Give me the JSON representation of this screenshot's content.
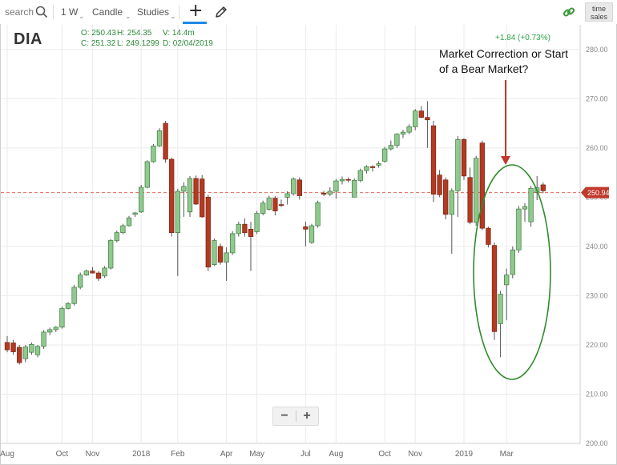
{
  "toolbar": {
    "search_label": "search",
    "interval": "1 W",
    "chart_type": "Candle",
    "studies_label": "Studies",
    "caret": "⌄",
    "time_sales_line1": "time",
    "time_sales_line2": "sales",
    "icons": [
      "search-icon",
      "chevron-down-icon",
      "crosshair-icon",
      "pencil-icon",
      "link-icon"
    ]
  },
  "header": {
    "symbol": "DIA",
    "open": "O: 250.43",
    "high": "H: 254.35",
    "volume": "V: 14.4m",
    "close": "C: 251.32",
    "low": "L: 249.1299",
    "date": "D: 02/04/2019",
    "change": "+1.84 (+0.73%)"
  },
  "annotation": {
    "text_line1": "Market Correction or Start",
    "text_line2": "of a Bear Market?"
  },
  "zoom": {
    "minus": "−",
    "plus": "+"
  },
  "colors": {
    "up_candle": "#8fc98f",
    "down_candle": "#b33a22",
    "wick": "#555555",
    "price_line": "#e06a5a",
    "price_tag": "#c0392b",
    "annotation_circle": "#2e8b2e",
    "annotation_arrow": "#c0392b",
    "grid": "#ebebeb",
    "ohlc_text": "#2e8b3a"
  },
  "chart_data": {
    "type": "candlestick",
    "title": "",
    "xlabel": "",
    "ylabel": "",
    "ylim": [
      200,
      285
    ],
    "y_ticks": [
      "200.00",
      "210.00",
      "220.00",
      "230.00",
      "240.00",
      "250.00",
      "260.00",
      "270.00",
      "280.00"
    ],
    "last_price": 250.94,
    "last_price_label": "250.94",
    "grid": true,
    "x_tick_labels": [
      "Aug",
      "Oct",
      "Nov",
      "2018",
      "Feb",
      "Apr",
      "May",
      "Jul",
      "Aug",
      "Oct",
      "Nov",
      "2019",
      "Mar"
    ],
    "x_tick_index": [
      0,
      9,
      14,
      22,
      28,
      36,
      41,
      49,
      54,
      62,
      67,
      75,
      82
    ],
    "candles": [
      {
        "o": 220.5,
        "h": 221.8,
        "l": 218.5,
        "c": 219.0
      },
      {
        "o": 220.4,
        "h": 221.0,
        "l": 218.0,
        "c": 218.6
      },
      {
        "o": 219.5,
        "h": 220.0,
        "l": 216.0,
        "c": 216.4
      },
      {
        "o": 217.2,
        "h": 220.0,
        "l": 216.5,
        "c": 219.6
      },
      {
        "o": 218.5,
        "h": 220.5,
        "l": 218.0,
        "c": 220.1
      },
      {
        "o": 218.0,
        "h": 220.0,
        "l": 217.5,
        "c": 219.7
      },
      {
        "o": 219.7,
        "h": 223.0,
        "l": 219.2,
        "c": 222.6
      },
      {
        "o": 222.6,
        "h": 223.5,
        "l": 222.0,
        "c": 223.1
      },
      {
        "o": 223.1,
        "h": 223.8,
        "l": 222.6,
        "c": 223.6
      },
      {
        "o": 223.6,
        "h": 227.8,
        "l": 223.3,
        "c": 227.4
      },
      {
        "o": 227.4,
        "h": 228.7,
        "l": 227.2,
        "c": 228.4
      },
      {
        "o": 228.4,
        "h": 232.2,
        "l": 228.0,
        "c": 231.7
      },
      {
        "o": 231.7,
        "h": 234.7,
        "l": 231.3,
        "c": 234.2
      },
      {
        "o": 234.2,
        "h": 235.3,
        "l": 234.0,
        "c": 235.0
      },
      {
        "o": 235.0,
        "h": 235.8,
        "l": 234.5,
        "c": 234.6
      },
      {
        "o": 234.6,
        "h": 235.0,
        "l": 233.0,
        "c": 233.5
      },
      {
        "o": 234.0,
        "h": 236.0,
        "l": 233.6,
        "c": 235.6
      },
      {
        "o": 235.6,
        "h": 241.5,
        "l": 235.3,
        "c": 241.2
      },
      {
        "o": 241.2,
        "h": 243.2,
        "l": 240.8,
        "c": 242.8
      },
      {
        "o": 242.8,
        "h": 244.6,
        "l": 242.5,
        "c": 244.2
      },
      {
        "o": 244.2,
        "h": 246.2,
        "l": 244.0,
        "c": 245.8
      },
      {
        "o": 246.5,
        "h": 247.0,
        "l": 246.0,
        "c": 246.8
      },
      {
        "o": 247.0,
        "h": 252.5,
        "l": 246.8,
        "c": 252.0
      },
      {
        "o": 252.0,
        "h": 257.5,
        "l": 251.8,
        "c": 257.2
      },
      {
        "o": 257.2,
        "h": 260.8,
        "l": 257.0,
        "c": 260.4
      },
      {
        "o": 260.4,
        "h": 264.0,
        "l": 260.2,
        "c": 263.5
      },
      {
        "o": 265.0,
        "h": 265.5,
        "l": 257.0,
        "c": 257.7
      },
      {
        "o": 257.7,
        "h": 258.0,
        "l": 242.0,
        "c": 242.8
      },
      {
        "o": 242.8,
        "h": 251.7,
        "l": 234.0,
        "c": 251.2
      },
      {
        "o": 251.2,
        "h": 253.0,
        "l": 246.0,
        "c": 252.2
      },
      {
        "o": 247.0,
        "h": 254.3,
        "l": 246.0,
        "c": 253.8
      },
      {
        "o": 253.8,
        "h": 254.4,
        "l": 248.4,
        "c": 248.6
      },
      {
        "o": 253.7,
        "h": 254.5,
        "l": 245.8,
        "c": 246.0
      },
      {
        "o": 250.0,
        "h": 250.5,
        "l": 235.0,
        "c": 235.8
      },
      {
        "o": 236.3,
        "h": 241.6,
        "l": 236.0,
        "c": 241.2
      },
      {
        "o": 240.0,
        "h": 240.6,
        "l": 236.3,
        "c": 236.8
      },
      {
        "o": 236.8,
        "h": 239.8,
        "l": 233.0,
        "c": 238.7
      },
      {
        "o": 238.7,
        "h": 243.1,
        "l": 238.3,
        "c": 242.6
      },
      {
        "o": 242.6,
        "h": 245.0,
        "l": 242.0,
        "c": 244.5
      },
      {
        "o": 244.5,
        "h": 245.7,
        "l": 242.0,
        "c": 242.8
      },
      {
        "o": 243.5,
        "h": 245.0,
        "l": 235.0,
        "c": 242.0
      },
      {
        "o": 243.0,
        "h": 247.2,
        "l": 242.5,
        "c": 246.7
      },
      {
        "o": 246.7,
        "h": 249.3,
        "l": 246.3,
        "c": 248.8
      },
      {
        "o": 247.5,
        "h": 250.3,
        "l": 247.3,
        "c": 249.8
      },
      {
        "o": 249.8,
        "h": 250.2,
        "l": 246.3,
        "c": 247.2
      },
      {
        "o": 248.5,
        "h": 249.5,
        "l": 248.0,
        "c": 248.3
      },
      {
        "o": 250.0,
        "h": 251.2,
        "l": 248.5,
        "c": 250.7
      },
      {
        "o": 250.7,
        "h": 254.0,
        "l": 250.3,
        "c": 253.7
      },
      {
        "o": 253.5,
        "h": 254.0,
        "l": 249.5,
        "c": 250.3
      },
      {
        "o": 244.0,
        "h": 245.0,
        "l": 240.0,
        "c": 243.5
      },
      {
        "o": 240.8,
        "h": 244.6,
        "l": 240.5,
        "c": 244.2
      },
      {
        "o": 244.2,
        "h": 249.3,
        "l": 243.8,
        "c": 248.9
      },
      {
        "o": 250.8,
        "h": 251.3,
        "l": 250.2,
        "c": 250.6
      },
      {
        "o": 250.6,
        "h": 252.0,
        "l": 250.2,
        "c": 251.2
      },
      {
        "o": 251.2,
        "h": 253.7,
        "l": 249.7,
        "c": 253.3
      },
      {
        "o": 253.3,
        "h": 254.2,
        "l": 252.6,
        "c": 253.6
      },
      {
        "o": 253.6,
        "h": 254.0,
        "l": 253.0,
        "c": 253.5
      },
      {
        "o": 250.0,
        "h": 253.8,
        "l": 250.0,
        "c": 253.4
      },
      {
        "o": 253.4,
        "h": 255.8,
        "l": 253.0,
        "c": 255.4
      },
      {
        "o": 255.4,
        "h": 256.5,
        "l": 254.8,
        "c": 256.2
      },
      {
        "o": 256.2,
        "h": 256.5,
        "l": 255.2,
        "c": 256.0
      },
      {
        "o": 256.5,
        "h": 257.3,
        "l": 256.0,
        "c": 256.8
      },
      {
        "o": 257.3,
        "h": 260.2,
        "l": 257.0,
        "c": 259.8
      },
      {
        "o": 259.8,
        "h": 261.5,
        "l": 259.5,
        "c": 260.5
      },
      {
        "o": 260.5,
        "h": 263.0,
        "l": 260.0,
        "c": 262.8
      },
      {
        "o": 262.8,
        "h": 263.7,
        "l": 262.0,
        "c": 263.2
      },
      {
        "o": 263.2,
        "h": 264.8,
        "l": 262.8,
        "c": 264.3
      },
      {
        "o": 264.3,
        "h": 267.9,
        "l": 263.6,
        "c": 267.5
      },
      {
        "o": 267.5,
        "h": 268.5,
        "l": 266.0,
        "c": 266.2
      },
      {
        "o": 266.2,
        "h": 269.5,
        "l": 260.0,
        "c": 265.7
      },
      {
        "o": 264.5,
        "h": 265.5,
        "l": 249.0,
        "c": 250.6
      },
      {
        "o": 254.5,
        "h": 255.5,
        "l": 250.0,
        "c": 250.5
      },
      {
        "o": 253.5,
        "h": 254.0,
        "l": 245.5,
        "c": 246.5
      },
      {
        "o": 246.5,
        "h": 251.8,
        "l": 238.5,
        "c": 251.3
      },
      {
        "o": 251.3,
        "h": 262.4,
        "l": 246.0,
        "c": 261.7
      },
      {
        "o": 261.7,
        "h": 262.0,
        "l": 253.5,
        "c": 254.3
      },
      {
        "o": 254.0,
        "h": 256.0,
        "l": 244.5,
        "c": 244.9
      },
      {
        "o": 244.9,
        "h": 258.4,
        "l": 244.2,
        "c": 257.9
      },
      {
        "o": 261.0,
        "h": 261.5,
        "l": 243.3,
        "c": 243.7
      },
      {
        "o": 243.7,
        "h": 244.0,
        "l": 239.8,
        "c": 240.4
      },
      {
        "o": 240.2,
        "h": 240.8,
        "l": 221.0,
        "c": 222.7
      },
      {
        "o": 224.3,
        "h": 231.0,
        "l": 217.5,
        "c": 230.3
      },
      {
        "o": 232.2,
        "h": 235.5,
        "l": 225.0,
        "c": 234.2
      },
      {
        "o": 234.3,
        "h": 240.0,
        "l": 233.5,
        "c": 239.3
      },
      {
        "o": 239.3,
        "h": 248.2,
        "l": 238.7,
        "c": 247.6
      },
      {
        "o": 247.6,
        "h": 248.8,
        "l": 245.0,
        "c": 248.1
      },
      {
        "o": 245.0,
        "h": 252.3,
        "l": 244.0,
        "c": 251.8
      },
      {
        "o": 251.0,
        "h": 254.3,
        "l": 249.4,
        "c": 251.9
      },
      {
        "o": 252.5,
        "h": 253.0,
        "l": 250.8,
        "c": 251.3
      }
    ]
  }
}
